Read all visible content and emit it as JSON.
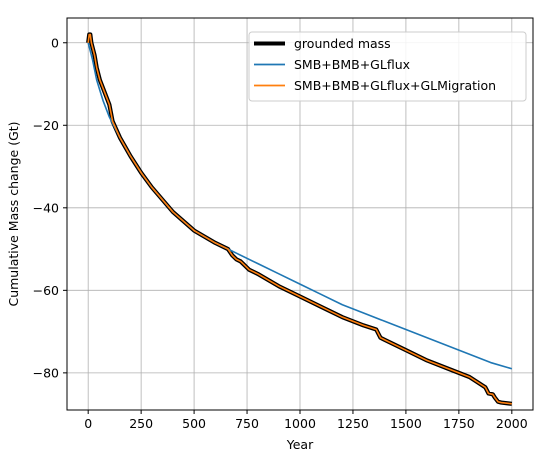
{
  "chart_data": {
    "type": "line",
    "xlabel": "Year",
    "ylabel": "Cumulative Mass change (Gt)",
    "xlim": [
      -100,
      2100
    ],
    "ylim": [
      -89,
      6
    ],
    "xticks": [
      0,
      250,
      500,
      750,
      1000,
      1250,
      1500,
      1750,
      2000
    ],
    "yticks": [
      0,
      -20,
      -40,
      -60,
      -80
    ],
    "grid": true,
    "legend_position": "top-right",
    "series": [
      {
        "name": "grounded mass",
        "color": "#000000",
        "style": "thick",
        "x": [
          0,
          5,
          10,
          15,
          20,
          30,
          40,
          55,
          70,
          85,
          100,
          115,
          150,
          200,
          250,
          300,
          400,
          500,
          600,
          660,
          680,
          700,
          720,
          740,
          760,
          800,
          900,
          1000,
          1100,
          1200,
          1300,
          1360,
          1370,
          1380,
          1400,
          1500,
          1600,
          1700,
          1800,
          1860,
          1875,
          1890,
          1910,
          1920,
          1935,
          1950,
          2000
        ],
        "y": [
          0,
          2,
          2,
          0,
          -1,
          -3,
          -6,
          -9,
          -11,
          -13,
          -15,
          -19,
          -23,
          -27.5,
          -31.5,
          -35,
          -41,
          -45.5,
          -48.5,
          -50,
          -51.5,
          -52.5,
          -53,
          -54,
          -55,
          -56,
          -59,
          -61.5,
          -64,
          -66.5,
          -68.5,
          -69.5,
          -70.5,
          -71.5,
          -72,
          -74.5,
          -77,
          -79,
          -81,
          -83,
          -83.5,
          -85,
          -85.2,
          -86,
          -87,
          -87.2,
          -87.5
        ]
      },
      {
        "name": "SMB+BMB+GLflux",
        "color": "#1f77b4",
        "x": [
          0,
          5,
          10,
          20,
          30,
          40,
          55,
          70,
          85,
          100,
          115,
          150,
          200,
          250,
          300,
          400,
          500,
          600,
          680,
          700,
          800,
          900,
          1000,
          1100,
          1200,
          1300,
          1400,
          1500,
          1600,
          1700,
          1800,
          1900,
          2000
        ],
        "y": [
          0,
          -1,
          -2,
          -4,
          -6.5,
          -9,
          -11.5,
          -14,
          -16,
          -18,
          -19.5,
          -23,
          -27.5,
          -31.5,
          -35,
          -41,
          -45.5,
          -48.5,
          -50.5,
          -51,
          -53.5,
          -56,
          -58.5,
          -61,
          -63.5,
          -65.5,
          -67.5,
          -69.5,
          -71.5,
          -73.5,
          -75.5,
          -77.5,
          -79
        ]
      },
      {
        "name": "SMB+BMB+GLflux+GLMigration",
        "color": "#ff7f0e",
        "x": [
          0,
          5,
          10,
          15,
          20,
          30,
          40,
          55,
          70,
          85,
          100,
          115,
          150,
          200,
          250,
          300,
          400,
          500,
          600,
          660,
          680,
          700,
          720,
          740,
          760,
          800,
          900,
          1000,
          1100,
          1200,
          1300,
          1360,
          1370,
          1380,
          1400,
          1500,
          1600,
          1700,
          1800,
          1860,
          1875,
          1890,
          1910,
          1920,
          1935,
          1950,
          2000
        ],
        "y": [
          0,
          2,
          2,
          0,
          -1,
          -3,
          -6,
          -9,
          -11,
          -13,
          -15,
          -19,
          -23,
          -27.5,
          -31.5,
          -35,
          -41,
          -45.5,
          -48.5,
          -50,
          -51.5,
          -52.5,
          -53,
          -54,
          -55,
          -56,
          -59,
          -61.5,
          -64,
          -66.5,
          -68.5,
          -69.5,
          -70.5,
          -71.5,
          -72,
          -74.5,
          -77,
          -79,
          -81,
          -83,
          -83.5,
          -85,
          -85.2,
          -86,
          -87,
          -87.2,
          -87.5
        ]
      }
    ]
  }
}
